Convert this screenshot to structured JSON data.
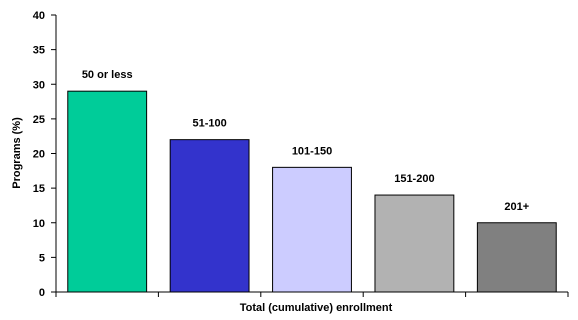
{
  "chart_data": {
    "type": "bar",
    "title": "",
    "xlabel": "Total (cumulative) enrollment",
    "ylabel": "Programs (%)",
    "ylim": [
      0,
      40
    ],
    "yticks": [
      "0",
      "5",
      "10",
      "15",
      "20",
      "25",
      "30",
      "35",
      "40"
    ],
    "grid": false,
    "legend": "none",
    "categories": [
      "50 or less",
      "51-100",
      "101-150",
      "151-200",
      "201+"
    ],
    "values": [
      29,
      22,
      18,
      14,
      10
    ],
    "colors": [
      "#00cc99",
      "#3333cc",
      "#ccccff",
      "#b2b2b2",
      "#808080"
    ]
  }
}
